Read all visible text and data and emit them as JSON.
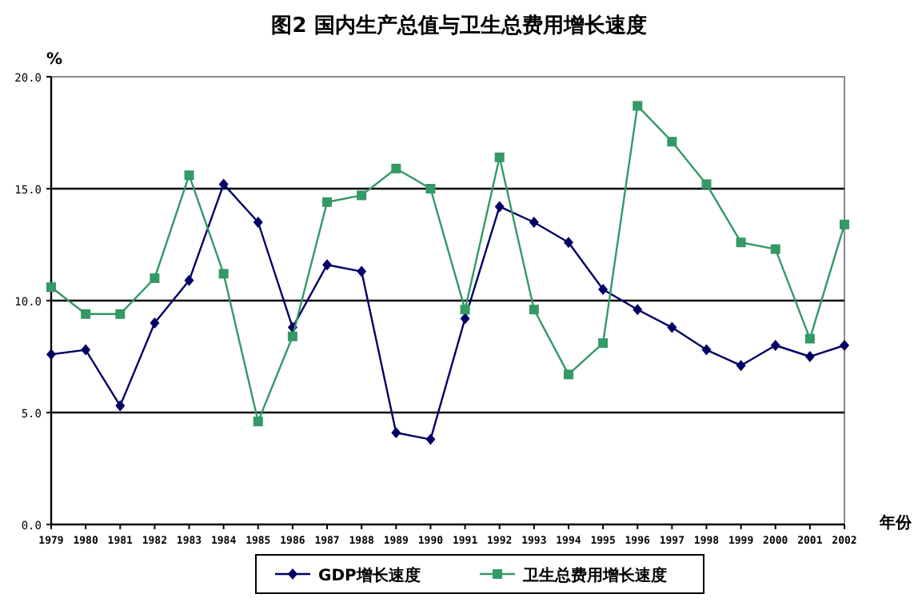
{
  "chart_data": {
    "type": "line",
    "title": "图2 国内生产总值与卫生总费用增长速度",
    "ylabel": "%",
    "xlabel": "年份",
    "categories": [
      "1979",
      "1980",
      "1981",
      "1982",
      "1983",
      "1984",
      "1985",
      "1986",
      "1987",
      "1988",
      "1989",
      "1990",
      "1991",
      "1992",
      "1993",
      "1994",
      "1995",
      "1996",
      "1997",
      "1998",
      "1999",
      "2000",
      "2001",
      "2002"
    ],
    "series": [
      {
        "name": "GDP增长速度",
        "color": "#000066",
        "marker": "diamond",
        "values": [
          7.6,
          7.8,
          5.3,
          9.0,
          10.9,
          15.2,
          13.5,
          8.8,
          11.6,
          11.3,
          4.1,
          3.8,
          9.2,
          14.2,
          13.5,
          12.6,
          10.5,
          9.6,
          8.8,
          7.8,
          7.1,
          8.0,
          7.5,
          8.0
        ]
      },
      {
        "name": "卫生总费用增长速度",
        "color": "#339966",
        "marker": "square",
        "values": [
          10.6,
          9.4,
          9.4,
          11.0,
          15.6,
          11.2,
          4.6,
          8.4,
          14.4,
          14.7,
          15.9,
          15.0,
          9.6,
          16.4,
          9.6,
          6.7,
          8.1,
          18.7,
          17.1,
          15.2,
          12.6,
          12.3,
          8.3,
          13.4
        ]
      }
    ],
    "ylim": [
      0,
      20
    ],
    "yticks": [
      {
        "value": 0,
        "label": "0.0"
      },
      {
        "value": 5,
        "label": "5.0"
      },
      {
        "value": 10,
        "label": "10.0"
      },
      {
        "value": 15,
        "label": "15.0"
      },
      {
        "value": 20,
        "label": "20.0"
      }
    ],
    "grid": "y",
    "legend": "bottom",
    "line_style": "solid"
  }
}
